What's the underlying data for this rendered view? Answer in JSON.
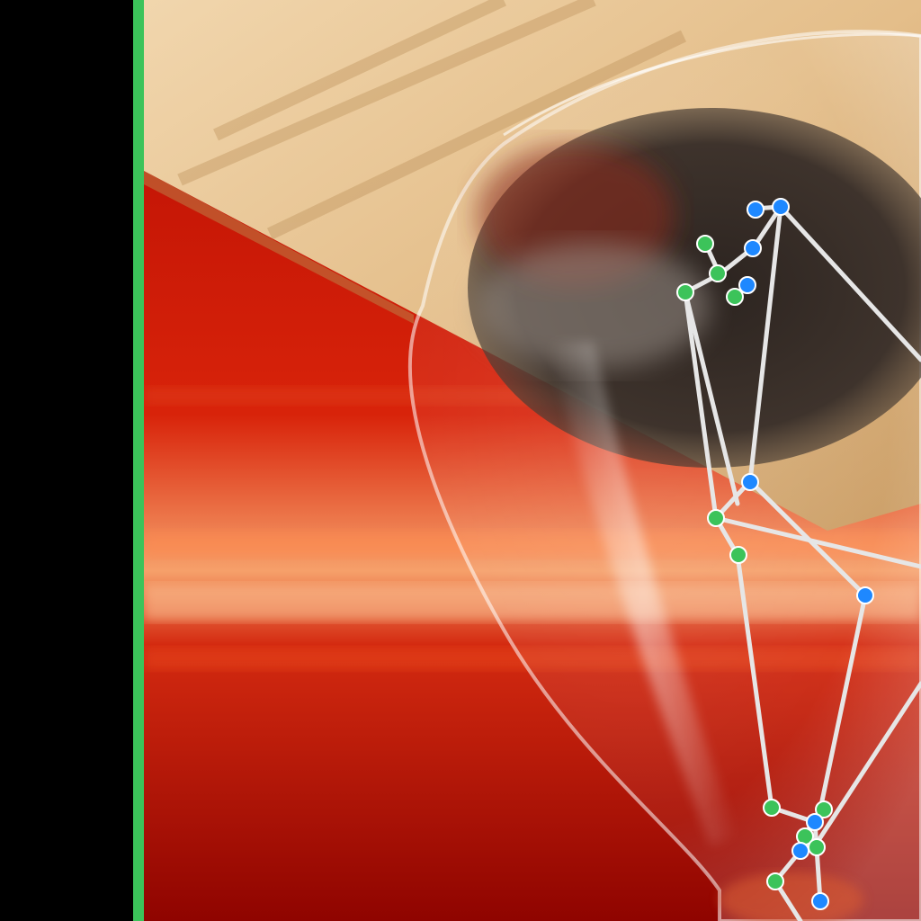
{
  "colors": {
    "frame_bar": "#3cc35a",
    "left_panel": "#000000",
    "skeleton_line": "#e6e6e6",
    "joint_left": "#3cc35a",
    "joint_right": "#1e88ff",
    "background_red": "#b40a00",
    "wood": "#e6c08c",
    "particles": "#3a302a"
  },
  "scene": {
    "subject": "hourglass",
    "overlay": "pose-skeleton"
  }
}
